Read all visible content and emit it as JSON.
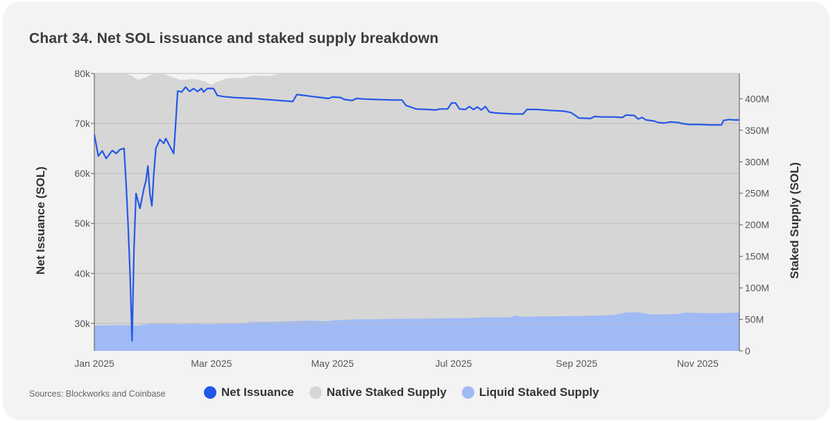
{
  "title": "Chart 34. Net SOL issuance and staked supply breakdown",
  "source": "Sources: Blockworks and Coinbase",
  "colors": {
    "net_issuance": "#2357e8",
    "native_staked": "#d6d6d6",
    "liquid_staked": "#a0baf5",
    "grid": "#bdbdbd",
    "axis": "#555555"
  },
  "legend": [
    {
      "key": "net_issuance",
      "label": "Net Issuance",
      "color": "#2357e8"
    },
    {
      "key": "native_staked",
      "label": "Native Staked Supply",
      "color": "#d6d6d6"
    },
    {
      "key": "liquid_staked",
      "label": "Liquid Staked Supply",
      "color": "#a0baf5"
    }
  ],
  "chart_data": {
    "type": "line+stacked-area",
    "title": "Chart 34. Net SOL issuance and staked supply breakdown",
    "x_ticks": [
      {
        "label": "Jan 2025",
        "day": 0
      },
      {
        "label": "Mar 2025",
        "day": 59
      },
      {
        "label": "May 2025",
        "day": 120
      },
      {
        "label": "Jul 2025",
        "day": 181
      },
      {
        "label": "Sep 2025",
        "day": 243
      },
      {
        "label": "Nov 2025",
        "day": 304
      }
    ],
    "x_range_days": [
      0,
      325
    ],
    "left_axis": {
      "label": "Net Issuance (SOL)",
      "range": [
        24500,
        80000
      ],
      "ticks": [
        30000,
        40000,
        50000,
        60000,
        70000,
        80000
      ],
      "tick_labels": [
        "30k",
        "40k",
        "50k",
        "60k",
        "70k",
        "80k"
      ]
    },
    "right_axis": {
      "label": "Staked Supply (SOL)",
      "range": [
        0,
        440000000
      ],
      "ticks": [
        0,
        50000000,
        100000000,
        150000000,
        200000000,
        250000000,
        300000000,
        350000000,
        400000000
      ],
      "tick_labels": [
        "0",
        "50M",
        "100M",
        "150M",
        "200M",
        "250M",
        "300M",
        "350M",
        "400M"
      ]
    },
    "series": [
      {
        "name": "Net Issuance",
        "axis": "left",
        "type": "line",
        "points": [
          [
            0,
            67800
          ],
          [
            2,
            63500
          ],
          [
            4,
            64500
          ],
          [
            6,
            63000
          ],
          [
            9,
            64600
          ],
          [
            11,
            64000
          ],
          [
            13,
            64800
          ],
          [
            15,
            65000
          ],
          [
            16,
            58000
          ],
          [
            17,
            50000
          ],
          [
            18,
            40000
          ],
          [
            19,
            26500
          ],
          [
            20,
            45000
          ],
          [
            21,
            56000
          ],
          [
            23,
            53000
          ],
          [
            25,
            57000
          ],
          [
            26,
            58500
          ],
          [
            27,
            61500
          ],
          [
            28,
            56000
          ],
          [
            29,
            53500
          ],
          [
            30,
            60000
          ],
          [
            31,
            65000
          ],
          [
            33,
            66800
          ],
          [
            35,
            66000
          ],
          [
            36,
            67000
          ],
          [
            38,
            65500
          ],
          [
            40,
            64000
          ],
          [
            41,
            70000
          ],
          [
            42,
            76500
          ],
          [
            44,
            76300
          ],
          [
            46,
            77300
          ],
          [
            48,
            76400
          ],
          [
            50,
            77000
          ],
          [
            52,
            76400
          ],
          [
            54,
            77000
          ],
          [
            55,
            76300
          ],
          [
            57,
            77000
          ],
          [
            60,
            77000
          ],
          [
            62,
            75600
          ],
          [
            65,
            75400
          ],
          [
            70,
            75200
          ],
          [
            80,
            75000
          ],
          [
            90,
            74700
          ],
          [
            100,
            74400
          ],
          [
            102,
            75800
          ],
          [
            104,
            75700
          ],
          [
            106,
            75600
          ],
          [
            110,
            75400
          ],
          [
            114,
            75200
          ],
          [
            118,
            75000
          ],
          [
            120,
            75300
          ],
          [
            124,
            75200
          ],
          [
            126,
            74800
          ],
          [
            130,
            74600
          ],
          [
            132,
            75000
          ],
          [
            136,
            74900
          ],
          [
            142,
            74800
          ],
          [
            150,
            74700
          ],
          [
            155,
            74700
          ],
          [
            157,
            73600
          ],
          [
            160,
            73200
          ],
          [
            162,
            72900
          ],
          [
            168,
            72800
          ],
          [
            172,
            72700
          ],
          [
            174,
            72900
          ],
          [
            178,
            72900
          ],
          [
            180,
            74100
          ],
          [
            182,
            74100
          ],
          [
            184,
            72900
          ],
          [
            187,
            72800
          ],
          [
            189,
            73400
          ],
          [
            191,
            72800
          ],
          [
            193,
            73300
          ],
          [
            195,
            72700
          ],
          [
            197,
            73400
          ],
          [
            199,
            72300
          ],
          [
            202,
            72100
          ],
          [
            207,
            72000
          ],
          [
            212,
            71900
          ],
          [
            216,
            71900
          ],
          [
            218,
            72800
          ],
          [
            223,
            72800
          ],
          [
            230,
            72600
          ],
          [
            236,
            72500
          ],
          [
            240,
            72200
          ],
          [
            242,
            71700
          ],
          [
            244,
            71100
          ],
          [
            250,
            71000
          ],
          [
            252,
            71400
          ],
          [
            256,
            71300
          ],
          [
            262,
            71300
          ],
          [
            266,
            71200
          ],
          [
            268,
            71700
          ],
          [
            272,
            71600
          ],
          [
            274,
            70900
          ],
          [
            276,
            71200
          ],
          [
            278,
            70700
          ],
          [
            282,
            70500
          ],
          [
            284,
            70200
          ],
          [
            287,
            70100
          ],
          [
            290,
            70300
          ],
          [
            294,
            70200
          ],
          [
            296,
            70000
          ],
          [
            300,
            69800
          ],
          [
            305,
            69800
          ],
          [
            310,
            69700
          ],
          [
            316,
            69700
          ],
          [
            317,
            70600
          ],
          [
            320,
            70800
          ],
          [
            322,
            70700
          ],
          [
            325,
            70700
          ]
        ]
      },
      {
        "name": "Liquid Staked Supply",
        "axis": "right",
        "type": "stacked-area",
        "points": [
          [
            0,
            40000000
          ],
          [
            8,
            40500000
          ],
          [
            15,
            41000000
          ],
          [
            22,
            40000000
          ],
          [
            28,
            43000000
          ],
          [
            35,
            44000000
          ],
          [
            42,
            42000000
          ],
          [
            50,
            43000000
          ],
          [
            57,
            42000000
          ],
          [
            63,
            43000000
          ],
          [
            70,
            44000000
          ],
          [
            75,
            44000000
          ],
          [
            80,
            46000000
          ],
          [
            90,
            46000000
          ],
          [
            100,
            47000000
          ],
          [
            108,
            48000000
          ],
          [
            116,
            47000000
          ],
          [
            124,
            49000000
          ],
          [
            132,
            50000000
          ],
          [
            140,
            50000000
          ],
          [
            148,
            50500000
          ],
          [
            156,
            51000000
          ],
          [
            164,
            51000000
          ],
          [
            172,
            51500000
          ],
          [
            180,
            52000000
          ],
          [
            188,
            52000000
          ],
          [
            196,
            53000000
          ],
          [
            204,
            53000000
          ],
          [
            210,
            53500000
          ],
          [
            212,
            56000000
          ],
          [
            215,
            54000000
          ],
          [
            222,
            54500000
          ],
          [
            230,
            55000000
          ],
          [
            238,
            55000000
          ],
          [
            246,
            55500000
          ],
          [
            254,
            56000000
          ],
          [
            262,
            57000000
          ],
          [
            268,
            61000000
          ],
          [
            274,
            61000000
          ],
          [
            280,
            58000000
          ],
          [
            287,
            58000000
          ],
          [
            294,
            58500000
          ],
          [
            298,
            61000000
          ],
          [
            304,
            60000000
          ],
          [
            312,
            60000000
          ],
          [
            318,
            60000000
          ],
          [
            325,
            61000000
          ]
        ]
      },
      {
        "name": "Native Staked Supply",
        "axis": "right",
        "type": "stacked-area",
        "points": [
          [
            0,
            399000000
          ],
          [
            5,
            399000000
          ],
          [
            10,
            400000000
          ],
          [
            15,
            399000000
          ],
          [
            19,
            396000000
          ],
          [
            22,
            390000000
          ],
          [
            26,
            392000000
          ],
          [
            30,
            396000000
          ],
          [
            35,
            395000000
          ],
          [
            40,
            391000000
          ],
          [
            44,
            387000000
          ],
          [
            48,
            388000000
          ],
          [
            52,
            388000000
          ],
          [
            56,
            385000000
          ],
          [
            59,
            380000000
          ],
          [
            62,
            384000000
          ],
          [
            66,
            388000000
          ],
          [
            70,
            389000000
          ],
          [
            75,
            389000000
          ],
          [
            80,
            391000000
          ],
          [
            88,
            390000000
          ],
          [
            95,
            394000000
          ],
          [
            100,
            398000000
          ],
          [
            108,
            400000000
          ],
          [
            115,
            401000000
          ],
          [
            120,
            402000000
          ],
          [
            128,
            404000000
          ],
          [
            136,
            405000000
          ],
          [
            144,
            406000000
          ],
          [
            150,
            405000000
          ],
          [
            156,
            404000000
          ],
          [
            160,
            399000000
          ],
          [
            164,
            395000000
          ],
          [
            168,
            400000000
          ],
          [
            172,
            402000000
          ],
          [
            176,
            397000000
          ],
          [
            180,
            399000000
          ],
          [
            184,
            401000000
          ],
          [
            188,
            403000000
          ],
          [
            196,
            404000000
          ],
          [
            204,
            406000000
          ],
          [
            212,
            404000000
          ],
          [
            218,
            408000000
          ],
          [
            224,
            406000000
          ],
          [
            230,
            410000000
          ],
          [
            236,
            407000000
          ],
          [
            242,
            412000000
          ],
          [
            248,
            409000000
          ],
          [
            254,
            413000000
          ],
          [
            260,
            410000000
          ],
          [
            266,
            414000000
          ],
          [
            270,
            417000000
          ],
          [
            274,
            414000000
          ],
          [
            278,
            420000000
          ],
          [
            282,
            417000000
          ],
          [
            286,
            412000000
          ],
          [
            290,
            416000000
          ],
          [
            294,
            420000000
          ],
          [
            298,
            413000000
          ],
          [
            302,
            417000000
          ],
          [
            306,
            419000000
          ],
          [
            310,
            420000000
          ],
          [
            314,
            416000000
          ],
          [
            318,
            413000000
          ],
          [
            322,
            419000000
          ],
          [
            325,
            418000000
          ]
        ]
      }
    ]
  }
}
